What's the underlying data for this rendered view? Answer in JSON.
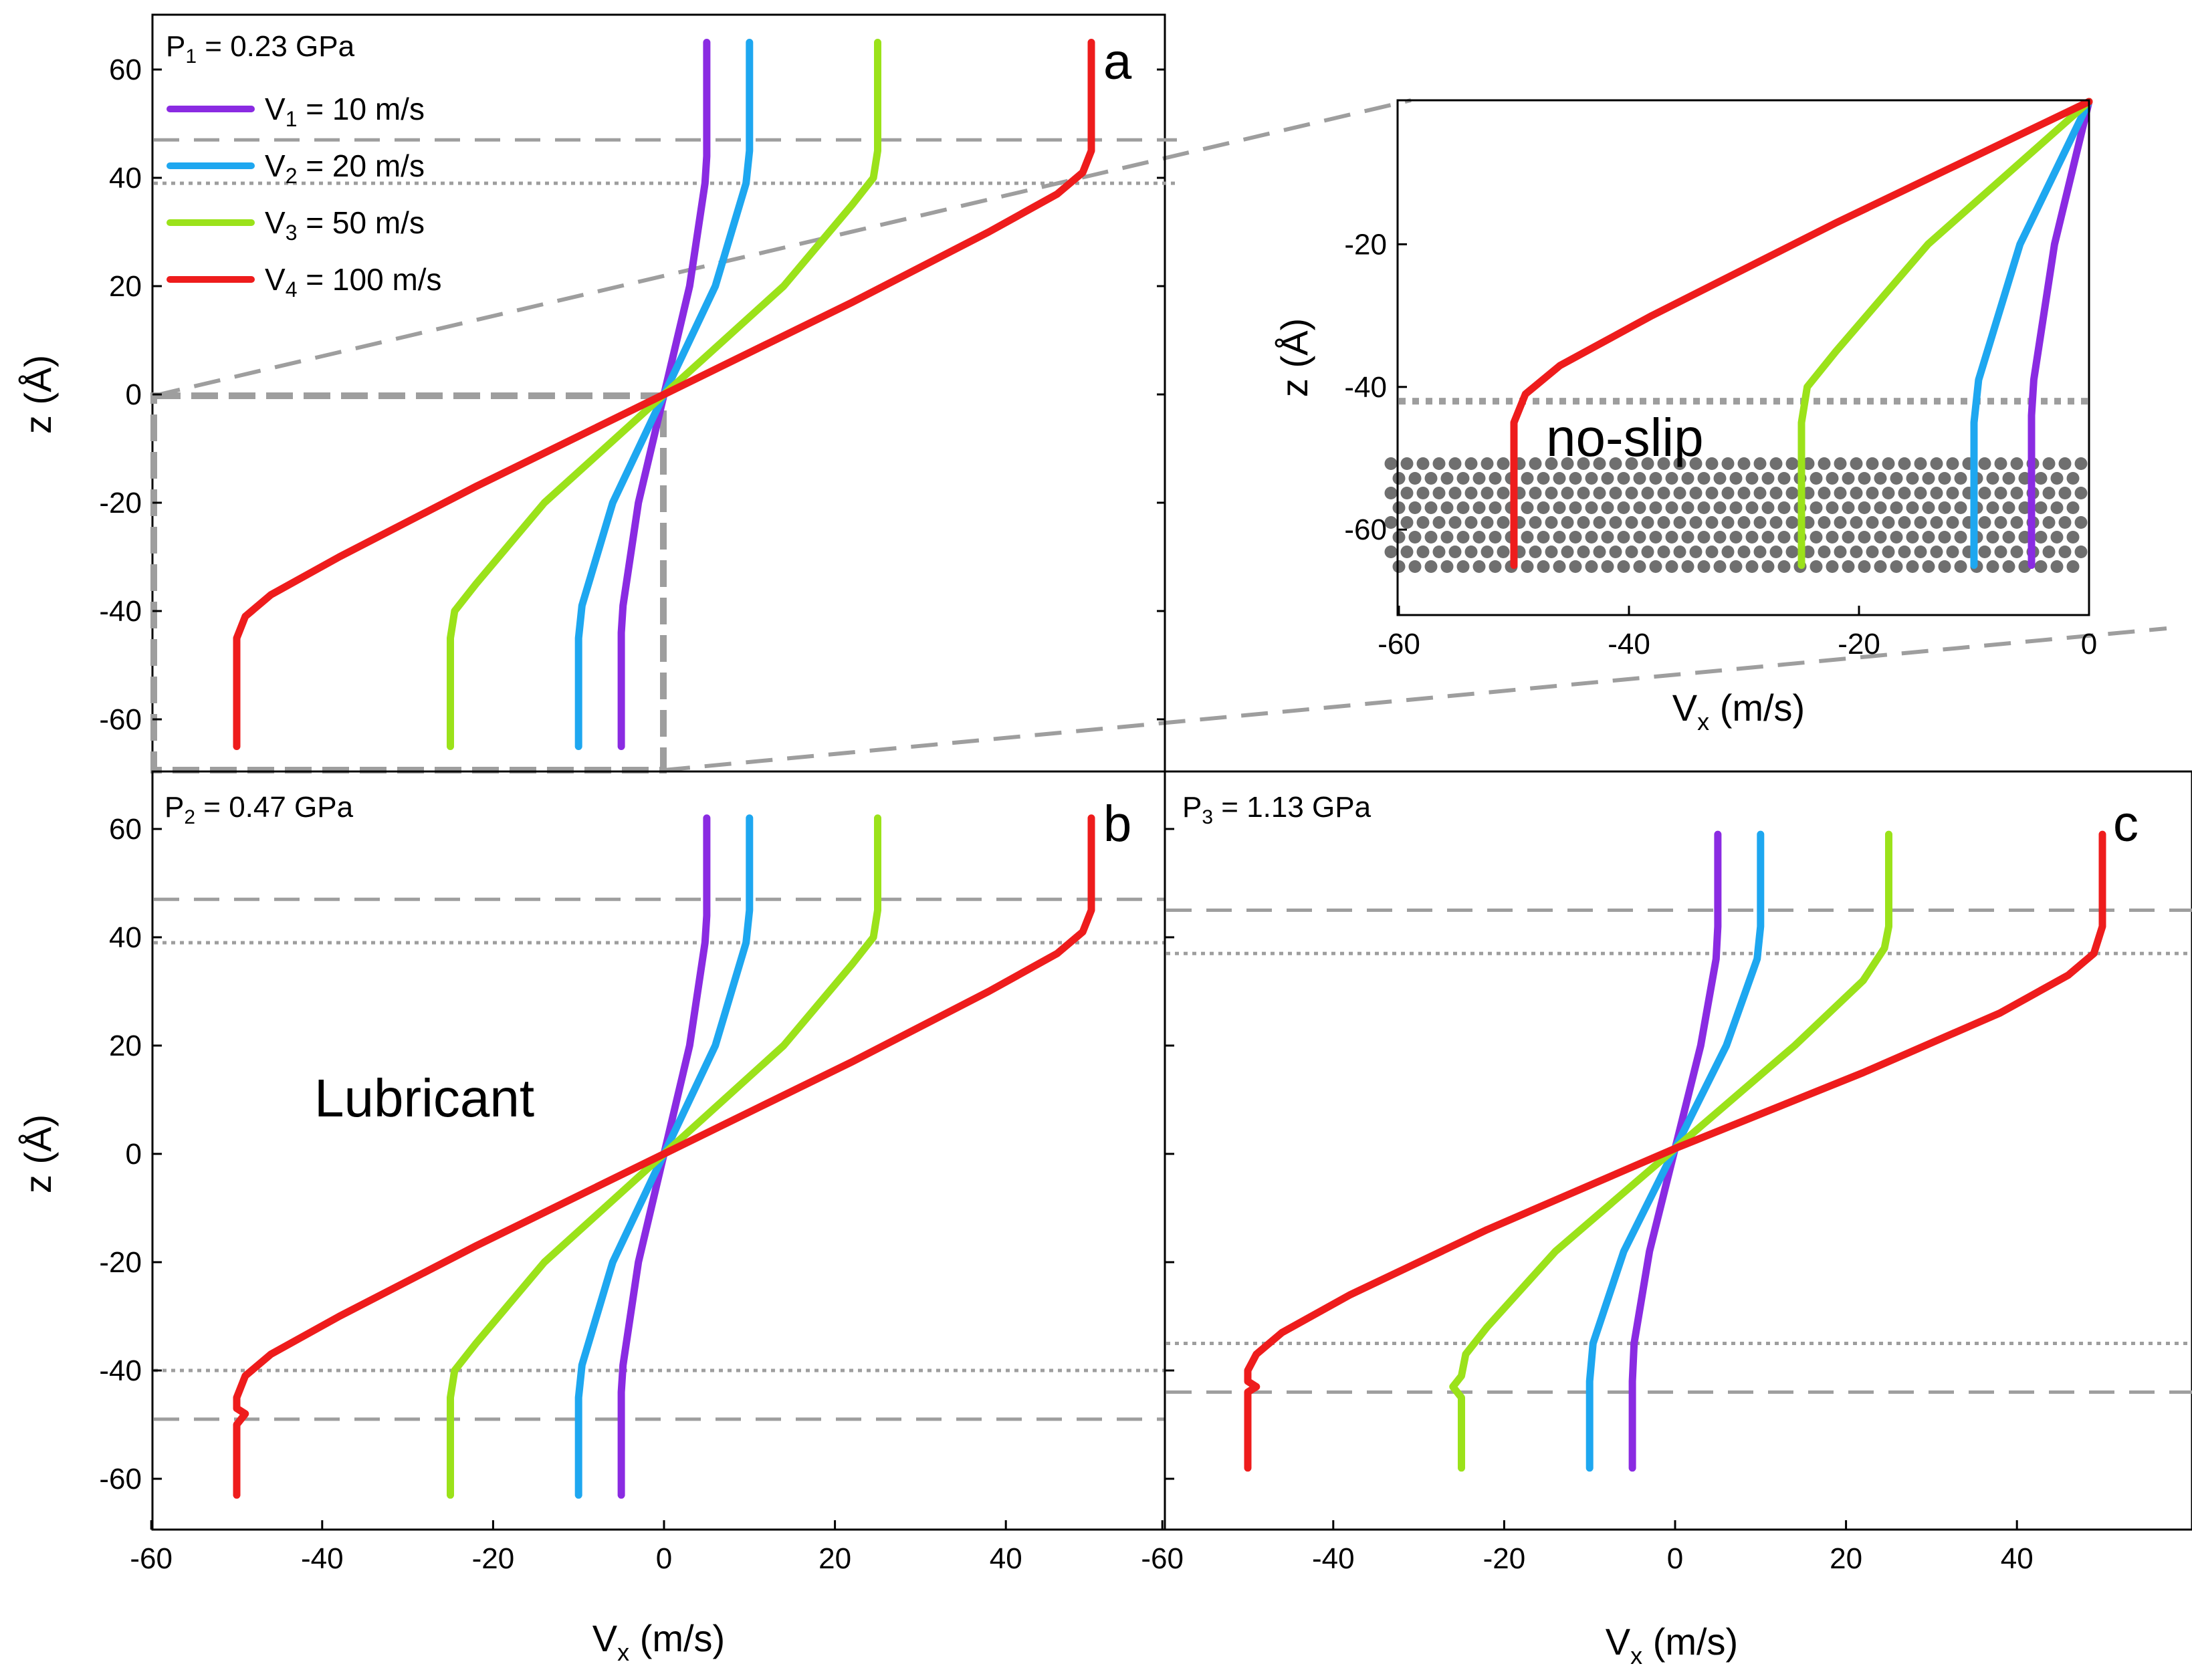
{
  "colors": {
    "v1": "#8a2be2",
    "v2": "#1ea7f0",
    "v3": "#9be21a",
    "v4": "#ee1c1c",
    "boundary": "#9e9e9e",
    "lattice": "#6f6f6f"
  },
  "chart_data": [
    {
      "id": "a",
      "type": "line",
      "panel_letter": "a",
      "pressure_label": "P",
      "pressure_sub": "1",
      "pressure_value": " = 0.23 GPa",
      "xlabel": "V",
      "xlabel_sub": "x",
      "xlabel_unit": " (m/s)",
      "ylabel": "z (Å)",
      "xlim": [
        -60,
        60
      ],
      "ylim": [
        -70,
        70
      ],
      "xticks": [],
      "yticks": [
        "-60",
        "-40",
        "-20",
        "0",
        "20",
        "40",
        "60"
      ],
      "legend": [
        {
          "name": "V",
          "sub": "1",
          "value": " = 10 m/s",
          "key": "v1"
        },
        {
          "name": "V",
          "sub": "2",
          "value": " = 20 m/s",
          "key": "v2"
        },
        {
          "name": "V",
          "sub": "3",
          "value": " = 50 m/s",
          "key": "v3"
        },
        {
          "name": "V",
          "sub": "4",
          "value": " = 100 m/s",
          "key": "v4"
        }
      ],
      "boundary_lines": [
        {
          "z": 47,
          "style": "dashed"
        },
        {
          "z": 39,
          "style": "dotted"
        }
      ],
      "series": [
        {
          "key": "v1",
          "points": [
            [
              -5,
              -65
            ],
            [
              -5,
              -44
            ],
            [
              -4.8,
              -39
            ],
            [
              -3,
              -20
            ],
            [
              0,
              0
            ],
            [
              3,
              20
            ],
            [
              4.8,
              39
            ],
            [
              5,
              44
            ],
            [
              5,
              65
            ]
          ]
        },
        {
          "key": "v2",
          "points": [
            [
              -10,
              -65
            ],
            [
              -10,
              -45
            ],
            [
              -9.6,
              -39
            ],
            [
              -6,
              -20
            ],
            [
              0,
              0
            ],
            [
              6,
              20
            ],
            [
              9.6,
              39
            ],
            [
              10,
              45
            ],
            [
              10,
              65
            ]
          ]
        },
        {
          "key": "v3",
          "points": [
            [
              -25,
              -65
            ],
            [
              -25,
              -45
            ],
            [
              -24.5,
              -40
            ],
            [
              -22,
              -35
            ],
            [
              -14,
              -20
            ],
            [
              0,
              0
            ],
            [
              14,
              20
            ],
            [
              22,
              35
            ],
            [
              24.5,
              40
            ],
            [
              25,
              45
            ],
            [
              25,
              65
            ]
          ]
        },
        {
          "key": "v4",
          "points": [
            [
              -50,
              -65
            ],
            [
              -50,
              -45
            ],
            [
              -49,
              -41
            ],
            [
              -46,
              -37
            ],
            [
              -38,
              -30
            ],
            [
              -22,
              -17
            ],
            [
              0,
              0
            ],
            [
              22,
              17
            ],
            [
              38,
              30
            ],
            [
              46,
              37
            ],
            [
              49,
              41
            ],
            [
              50,
              45
            ],
            [
              50,
              65
            ]
          ]
        }
      ]
    },
    {
      "id": "inset",
      "type": "line",
      "xlabel": "V",
      "xlabel_sub": "x",
      "xlabel_unit": " (m/s)",
      "ylabel": "z (Å)",
      "annotation": "no-slip",
      "xlim": [
        -60,
        0
      ],
      "ylim": [
        -70,
        0
      ],
      "xticks": [
        "-60",
        "-40",
        "-20",
        "0"
      ],
      "yticks": [
        "-60",
        "-40",
        "-20"
      ],
      "boundary_lines": [
        {
          "z": -42,
          "style": "dotted-thick"
        }
      ],
      "lattice_region": [
        -67,
        -50
      ],
      "series": [
        {
          "key": "v1",
          "points": [
            [
              -5,
              -65
            ],
            [
              -5,
              -44
            ],
            [
              -4.8,
              -39
            ],
            [
              -3,
              -20
            ],
            [
              0,
              0
            ]
          ]
        },
        {
          "key": "v2",
          "points": [
            [
              -10,
              -65
            ],
            [
              -10,
              -45
            ],
            [
              -9.6,
              -39
            ],
            [
              -6,
              -20
            ],
            [
              0,
              0
            ]
          ]
        },
        {
          "key": "v3",
          "points": [
            [
              -25,
              -65
            ],
            [
              -25,
              -45
            ],
            [
              -24.5,
              -40
            ],
            [
              -22,
              -35
            ],
            [
              -14,
              -20
            ],
            [
              0,
              0
            ]
          ]
        },
        {
          "key": "v4",
          "points": [
            [
              -50,
              -65
            ],
            [
              -50,
              -45
            ],
            [
              -49,
              -41
            ],
            [
              -46,
              -37
            ],
            [
              -38,
              -30
            ],
            [
              -22,
              -17
            ],
            [
              0,
              0
            ]
          ]
        }
      ]
    },
    {
      "id": "b",
      "type": "line",
      "panel_letter": "b",
      "pressure_label": "P",
      "pressure_sub": "2",
      "pressure_value": " = 0.47 GPa",
      "annotation": "Lubricant",
      "xlabel": "V",
      "xlabel_sub": "x",
      "xlabel_unit": " (m/s)",
      "ylabel": "z (Å)",
      "xlim": [
        -60,
        60
      ],
      "ylim": [
        -70,
        70
      ],
      "xticks": [
        "-60",
        "-40",
        "-20",
        "0",
        "20",
        "40"
      ],
      "yticks": [
        "-60",
        "-40",
        "-20",
        "0",
        "20",
        "40",
        "60"
      ],
      "boundary_lines": [
        {
          "z": 47,
          "style": "dashed"
        },
        {
          "z": 39,
          "style": "dotted"
        },
        {
          "z": -40,
          "style": "dotted"
        },
        {
          "z": -49,
          "style": "dashed"
        }
      ],
      "series": [
        {
          "key": "v1",
          "points": [
            [
              -5,
              -63
            ],
            [
              -5,
              -44
            ],
            [
              -4.8,
              -39
            ],
            [
              -3,
              -20
            ],
            [
              0,
              0
            ],
            [
              3,
              20
            ],
            [
              4.8,
              39
            ],
            [
              5,
              44
            ],
            [
              5,
              62
            ]
          ]
        },
        {
          "key": "v2",
          "points": [
            [
              -10,
              -63
            ],
            [
              -10,
              -45
            ],
            [
              -9.6,
              -39
            ],
            [
              -6,
              -20
            ],
            [
              0,
              0
            ],
            [
              6,
              20
            ],
            [
              9.6,
              39
            ],
            [
              10,
              45
            ],
            [
              10,
              62
            ]
          ]
        },
        {
          "key": "v3",
          "points": [
            [
              -25,
              -63
            ],
            [
              -25,
              -45
            ],
            [
              -24.5,
              -40
            ],
            [
              -22,
              -35
            ],
            [
              -14,
              -20
            ],
            [
              0,
              0
            ],
            [
              14,
              20
            ],
            [
              22,
              35
            ],
            [
              24.5,
              40
            ],
            [
              25,
              45
            ],
            [
              25,
              62
            ]
          ]
        },
        {
          "key": "v4",
          "points": [
            [
              -50,
              -63
            ],
            [
              -50,
              -50
            ],
            [
              -49,
              -48
            ],
            [
              -50,
              -47
            ],
            [
              -50,
              -45
            ],
            [
              -49,
              -41
            ],
            [
              -46,
              -37
            ],
            [
              -38,
              -30
            ],
            [
              -22,
              -17
            ],
            [
              0,
              0
            ],
            [
              22,
              17
            ],
            [
              38,
              30
            ],
            [
              46,
              37
            ],
            [
              49,
              41
            ],
            [
              50,
              45
            ],
            [
              50,
              62
            ]
          ]
        }
      ]
    },
    {
      "id": "c",
      "type": "line",
      "panel_letter": "c",
      "pressure_label": "P",
      "pressure_sub": "3",
      "pressure_value": " = 1.13 GPa",
      "xlabel": "V",
      "xlabel_sub": "x",
      "xlabel_unit": " (m/s)",
      "xlim": [
        -60,
        60
      ],
      "ylim": [
        -70,
        70
      ],
      "xticks": [
        "-60",
        "-40",
        "-20",
        "0",
        "20",
        "40"
      ],
      "yticks": [],
      "boundary_lines": [
        {
          "z": 45,
          "style": "dashed"
        },
        {
          "z": 37,
          "style": "dotted"
        },
        {
          "z": -35,
          "style": "dotted"
        },
        {
          "z": -44,
          "style": "dashed"
        }
      ],
      "series": [
        {
          "key": "v1",
          "points": [
            [
              -5,
              -58
            ],
            [
              -5,
              -42
            ],
            [
              -4.8,
              -35
            ],
            [
              -3,
              -18
            ],
            [
              0,
              1
            ],
            [
              3,
              20
            ],
            [
              4.8,
              36
            ],
            [
              5,
              42
            ],
            [
              5,
              59
            ]
          ]
        },
        {
          "key": "v2",
          "points": [
            [
              -10,
              -58
            ],
            [
              -10,
              -42
            ],
            [
              -9.6,
              -35
            ],
            [
              -6,
              -18
            ],
            [
              0,
              1
            ],
            [
              6,
              20
            ],
            [
              9.6,
              36
            ],
            [
              10,
              42
            ],
            [
              10,
              59
            ]
          ]
        },
        {
          "key": "v3",
          "points": [
            [
              -25,
              -58
            ],
            [
              -25,
              -45
            ],
            [
              -26,
              -43
            ],
            [
              -25,
              -41
            ],
            [
              -24.5,
              -37
            ],
            [
              -22,
              -32
            ],
            [
              -14,
              -18
            ],
            [
              0,
              1
            ],
            [
              14,
              20
            ],
            [
              22,
              32
            ],
            [
              24.5,
              38
            ],
            [
              25,
              42
            ],
            [
              25,
              59
            ]
          ]
        },
        {
          "key": "v4",
          "points": [
            [
              -50,
              -58
            ],
            [
              -50,
              -44
            ],
            [
              -49,
              -43
            ],
            [
              -50,
              -42
            ],
            [
              -50,
              -40
            ],
            [
              -49,
              -37
            ],
            [
              -46,
              -33
            ],
            [
              -38,
              -26
            ],
            [
              -22,
              -14
            ],
            [
              0,
              1
            ],
            [
              22,
              15
            ],
            [
              38,
              26
            ],
            [
              46,
              33
            ],
            [
              49,
              37
            ],
            [
              50,
              42
            ],
            [
              50,
              59
            ]
          ]
        }
      ]
    }
  ]
}
